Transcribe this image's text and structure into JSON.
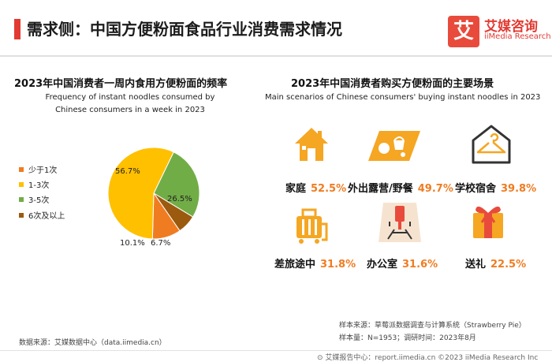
{
  "header": {
    "title": "需求侧：中国方便粉面食品行业消费需求情况",
    "logo_char": "艾",
    "logo_cn": "艾媒咨询",
    "logo_en": "iiMedia Research"
  },
  "left_panel": {
    "title_cn": "2023年中国消费者一周内食用方便粉面的频率",
    "title_en_line1": "Frequency of instant noodles consumed by",
    "title_en_line2": "Chinese consumers in a week in 2023"
  },
  "chart_data": {
    "type": "pie",
    "title": "2023年中国消费者一周内食用方便粉面的频率",
    "categories": [
      "少于1次",
      "1-3次",
      "3-5次",
      "6次及以上"
    ],
    "values": [
      10.1,
      56.7,
      26.5,
      6.7
    ],
    "value_labels": [
      "10.1%",
      "56.7%",
      "26.5%",
      "6.7%"
    ],
    "colors": [
      "#f07c21",
      "#ffc000",
      "#71ad47",
      "#9c5a0f"
    ],
    "legend_position": "left"
  },
  "right_panel": {
    "title_cn": "2023年中国消费者购买方便粉面的主要场景",
    "title_en": "Main scenarios of Chinese consumers' buying instant noodles in 2023",
    "scenes": [
      {
        "label": "家庭",
        "value": "52.5%",
        "icon": "house-icon"
      },
      {
        "label": "外出露营/野餐",
        "value": "49.7%",
        "icon": "picnic-icon"
      },
      {
        "label": "学校宿舍",
        "value": "39.8%",
        "icon": "hanger-icon"
      },
      {
        "label": "差旅途中",
        "value": "31.8%",
        "icon": "luggage-icon"
      },
      {
        "label": "办公室",
        "value": "31.6%",
        "icon": "office-chair-icon"
      },
      {
        "label": "送礼",
        "value": "22.5%",
        "icon": "gift-icon"
      }
    ]
  },
  "footer": {
    "source": "数据来源：艾媒数据中心（data.iimedia.cn）",
    "sample_source": "样本来源：草莓派数据调查与计算系统（Strawberry Pie）",
    "sample_size": "样本量：N=1953；调研时间：2023年8月",
    "report": "艾媒报告中心：report.iimedia.cn  ©2023  iiMedia Research  Inc"
  },
  "colors": {
    "accent_red": "#e23a32",
    "icon_orange": "#f5a623",
    "pct_orange": "#f07c21"
  }
}
